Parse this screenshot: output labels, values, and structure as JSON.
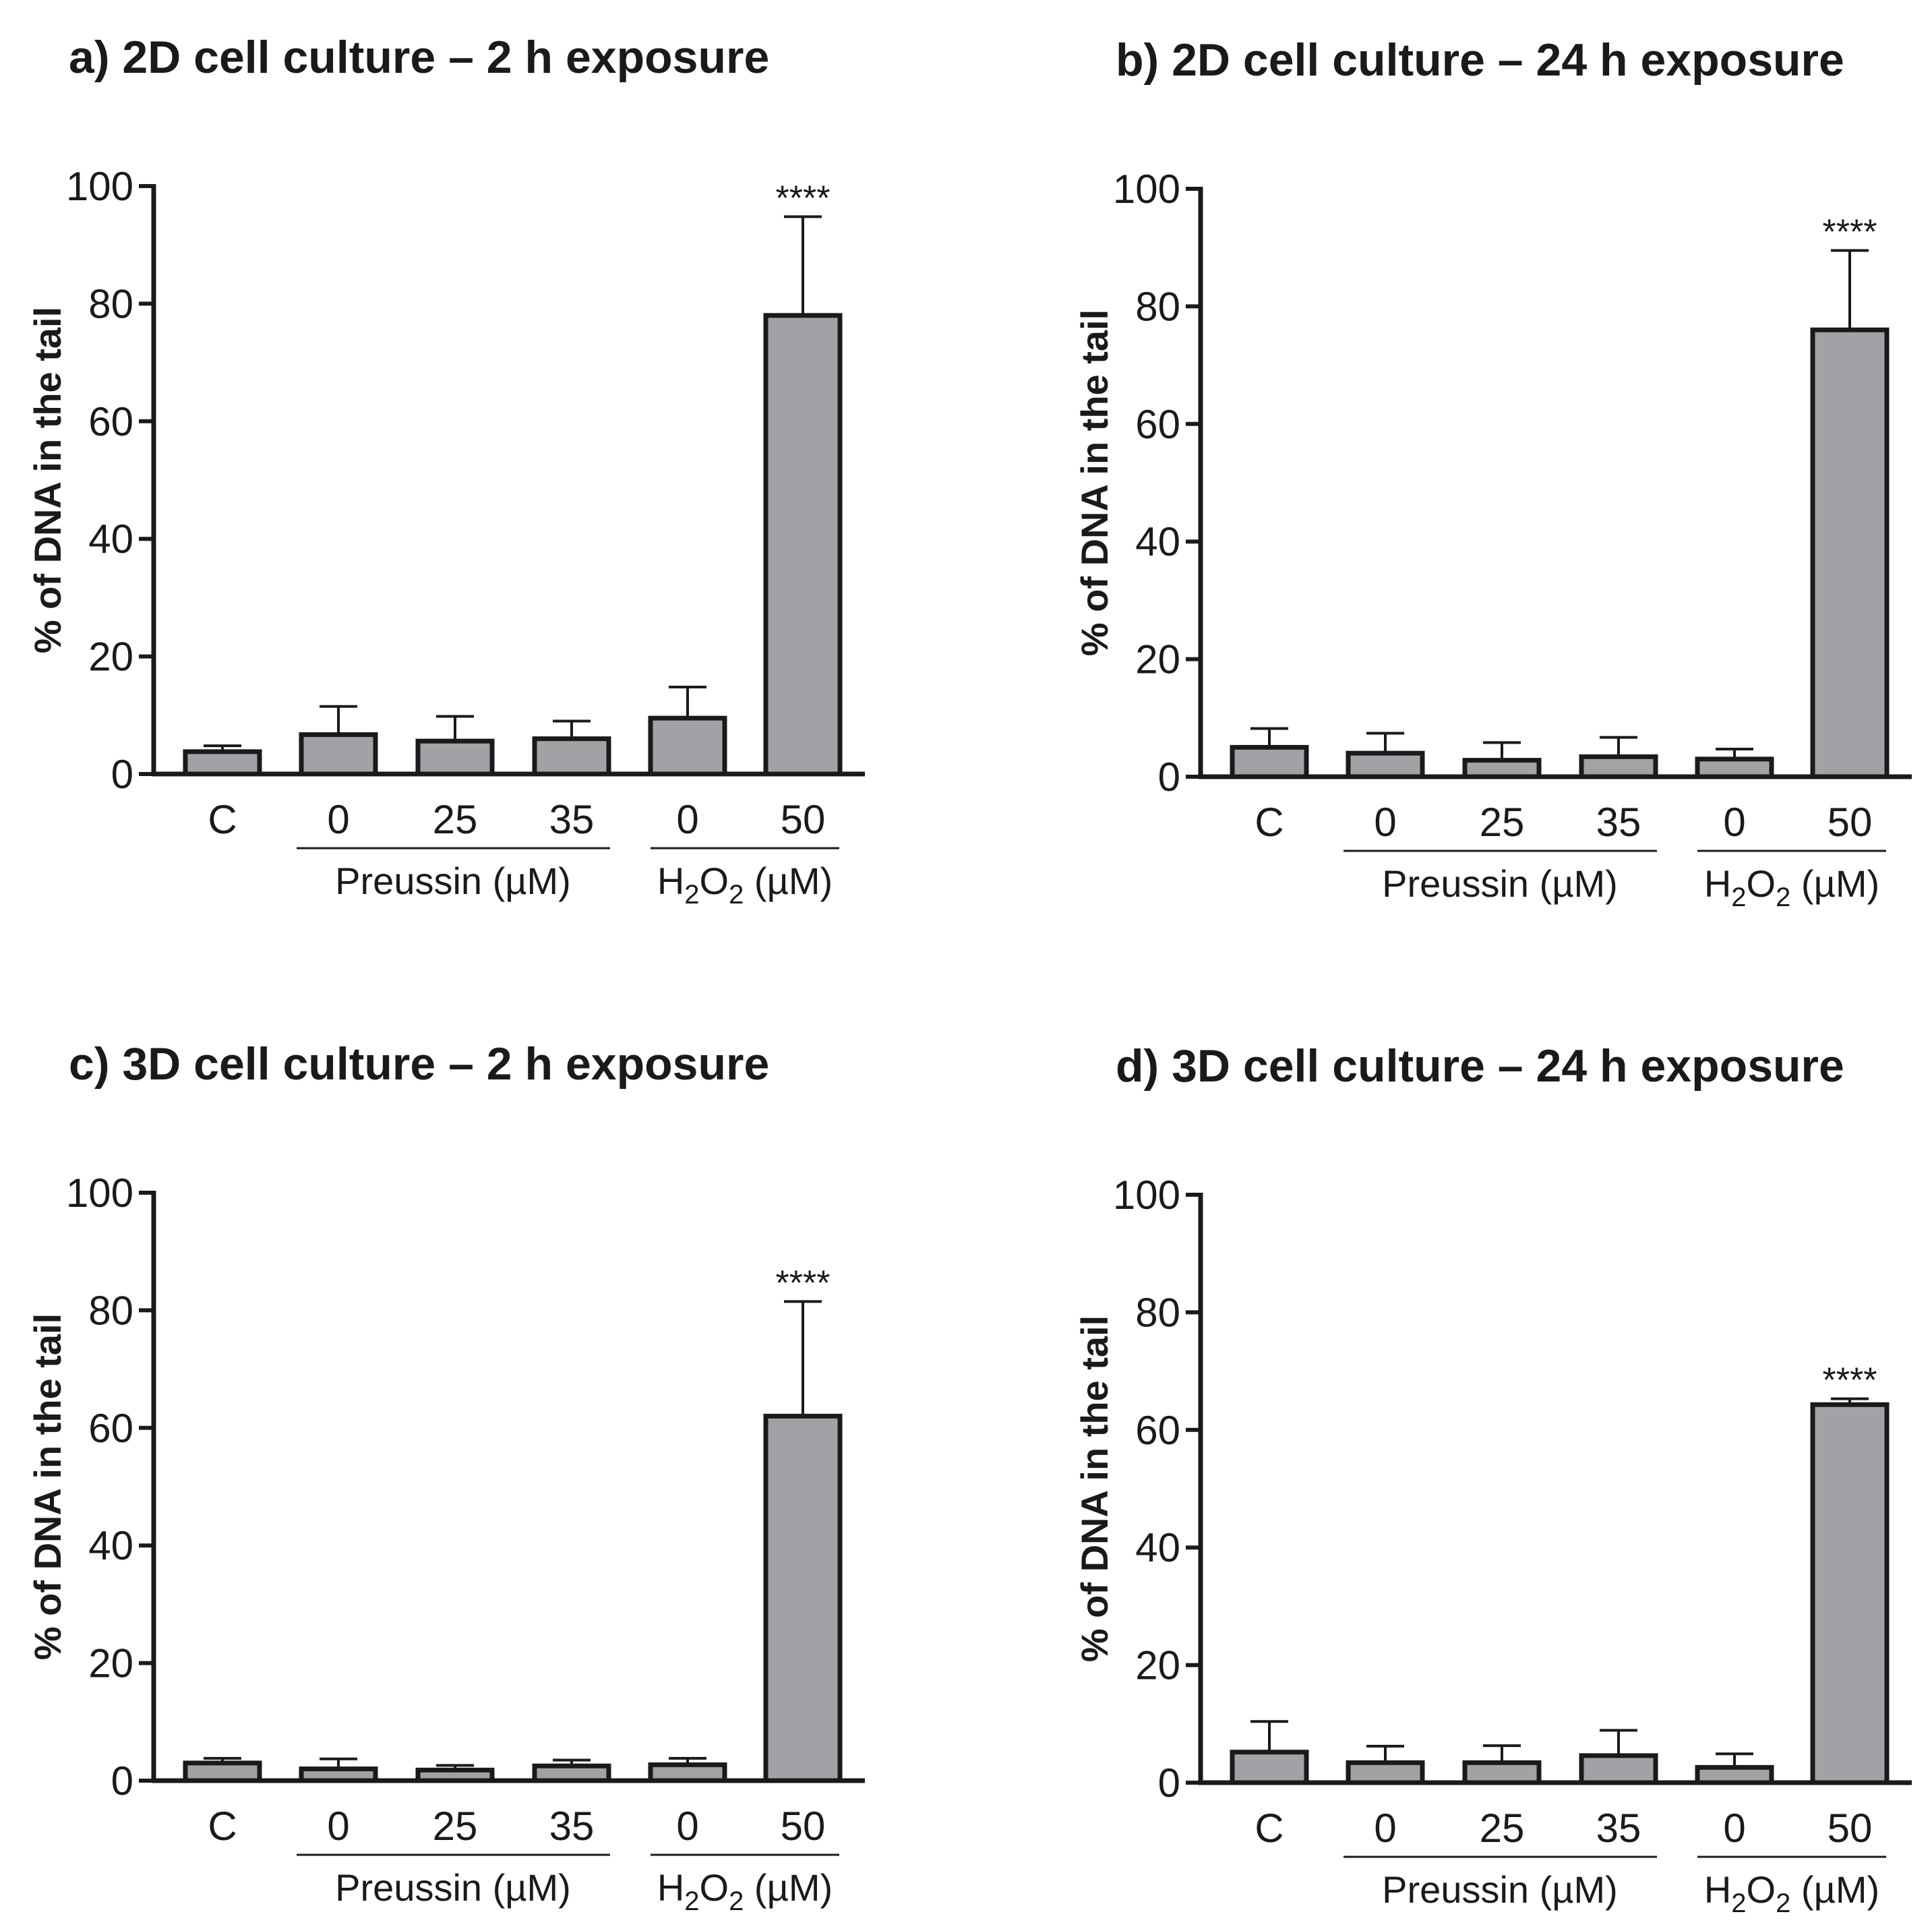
{
  "chart_data": [
    {
      "type": "bar",
      "title": "a) 2D cell culture – 2 h exposure",
      "ylabel": "% of DNA in the tail",
      "ylim": [
        0,
        100
      ],
      "yticks": [
        "0",
        "20",
        "40",
        "60",
        "80",
        "100"
      ],
      "categories": [
        "C",
        "0",
        "25",
        "35",
        "0",
        "50"
      ],
      "values": [
        3.8,
        6.7,
        5.6,
        6.0,
        9.5,
        78.0
      ],
      "errors": [
        1.0,
        4.8,
        4.2,
        3.0,
        5.3,
        16.8
      ],
      "significance": [
        "",
        "",
        "",
        "",
        "",
        "****"
      ],
      "groups": [
        {
          "label": "Preussin (µM)",
          "categories": [
            "0",
            "25",
            "35"
          ]
        },
        {
          "label_main": "H",
          "label_sub1": "2",
          "label_mid": "O",
          "label_sub2": "2",
          "label_tail": " (µM)",
          "categories": [
            "0",
            "50"
          ]
        }
      ],
      "bar_color": "#a3a1a6"
    },
    {
      "type": "bar",
      "title": "b) 2D cell culture – 24 h exposure",
      "ylabel": "% of DNA in the tail",
      "ylim": [
        0,
        100
      ],
      "yticks": [
        "0",
        "20",
        "40",
        "60",
        "80",
        "100"
      ],
      "categories": [
        "C",
        "0",
        "25",
        "35",
        "0",
        "50"
      ],
      "values": [
        5.0,
        4.0,
        2.8,
        3.4,
        3.0,
        76.0
      ],
      "errors": [
        3.2,
        3.4,
        3.0,
        3.3,
        1.7,
        13.5
      ],
      "significance": [
        "",
        "",
        "",
        "",
        "",
        "****"
      ],
      "groups": [
        {
          "label": "Preussin (µM)",
          "categories": [
            "0",
            "25",
            "35"
          ]
        },
        {
          "label_main": "H",
          "label_sub1": "2",
          "label_mid": "O",
          "label_sub2": "2",
          "label_tail": " (µM)",
          "categories": [
            "0",
            "50"
          ]
        }
      ],
      "bar_color": "#a3a1a6"
    },
    {
      "type": "bar",
      "title": "c) 3D cell culture – 2 h exposure",
      "ylabel": "% of DNA in the tail",
      "ylim": [
        0,
        100
      ],
      "yticks": [
        "0",
        "20",
        "40",
        "60",
        "80",
        "100"
      ],
      "categories": [
        "C",
        "0",
        "25",
        "35",
        "0",
        "50"
      ],
      "values": [
        3.0,
        2.0,
        1.8,
        2.5,
        2.7,
        62.0
      ],
      "errors": [
        0.8,
        1.7,
        0.8,
        1.0,
        1.1,
        19.5
      ],
      "significance": [
        "",
        "",
        "",
        "",
        "",
        "****"
      ],
      "groups": [
        {
          "label": "Preussin (µM)",
          "categories": [
            "0",
            "25",
            "35"
          ]
        },
        {
          "label_main": "H",
          "label_sub1": "2",
          "label_mid": "O",
          "label_sub2": "2",
          "label_tail": " (µM)",
          "categories": [
            "0",
            "50"
          ]
        }
      ],
      "bar_color": "#a3a1a6"
    },
    {
      "type": "bar",
      "title": "d) 3D cell culture – 24 h exposure",
      "ylabel": "% of DNA in the tail",
      "ylim": [
        0,
        100
      ],
      "yticks": [
        "0",
        "20",
        "40",
        "60",
        "80",
        "100"
      ],
      "categories": [
        "C",
        "0",
        "25",
        "35",
        "0",
        "50"
      ],
      "values": [
        5.2,
        3.4,
        3.4,
        4.6,
        2.6,
        64.3
      ],
      "errors": [
        5.2,
        2.8,
        2.9,
        4.3,
        2.3,
        1.0
      ],
      "significance": [
        "",
        "",
        "",
        "",
        "",
        "****"
      ],
      "groups": [
        {
          "label": "Preussin (µM)",
          "categories": [
            "0",
            "25",
            "35"
          ]
        },
        {
          "label_main": "H",
          "label_sub1": "2",
          "label_mid": "O",
          "label_sub2": "2",
          "label_tail": " (µM)",
          "categories": [
            "0",
            "50"
          ]
        }
      ],
      "bar_color": "#a3a1a6"
    }
  ]
}
